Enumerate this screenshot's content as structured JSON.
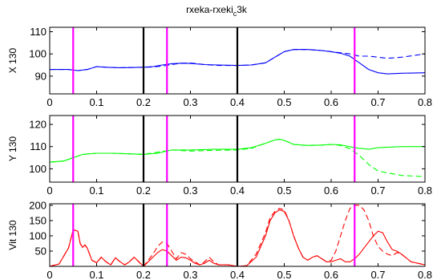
{
  "chart_data": {
    "type": "line",
    "title": "rxeka-rxeki",
    "title_sub": "c",
    "title_suffix": "3k",
    "xlim": [
      0,
      0.8
    ],
    "xticks": [
      "0",
      "0.1",
      "0.2",
      "0.3",
      "0.4",
      "0.5",
      "0.6",
      "0.7",
      "0.8"
    ],
    "xtick_values": [
      0,
      0.1,
      0.2,
      0.3,
      0.4,
      0.5,
      0.6,
      0.7,
      0.8
    ],
    "vlines_black": [
      0.2,
      0.4
    ],
    "vlines_magenta": [
      0.05,
      0.25,
      0.65
    ],
    "colors": {
      "black": "#000000",
      "magenta": "#ff00ff"
    },
    "panels": [
      {
        "ylabel": "X 130",
        "ylim": [
          82,
          112
        ],
        "yticks": [
          "90",
          "100",
          "110"
        ],
        "ytick_values": [
          90,
          100,
          110
        ],
        "color": "#0000ff",
        "series": [
          {
            "style": "solid",
            "x": [
              0,
              0.04,
              0.06,
              0.08,
              0.1,
              0.12,
              0.15,
              0.18,
              0.2,
              0.22,
              0.24,
              0.26,
              0.28,
              0.3,
              0.33,
              0.36,
              0.4,
              0.43,
              0.46,
              0.48,
              0.5,
              0.52,
              0.55,
              0.58,
              0.6,
              0.62,
              0.64,
              0.66,
              0.68,
              0.7,
              0.72,
              0.75,
              0.8
            ],
            "y": [
              93,
              93,
              92.5,
              93,
              94.3,
              94,
              93.8,
              93.9,
              94,
              94.3,
              95,
              95.6,
              95.8,
              95.7,
              95.2,
              95,
              94.8,
              95,
              96,
              98.5,
              101,
              102,
              102,
              101.5,
              101,
              100.3,
              99,
              96,
              93,
              91.5,
              91,
              91.3,
              91.5
            ]
          },
          {
            "style": "dashed",
            "x": [
              0,
              0.04,
              0.06,
              0.08,
              0.1,
              0.12,
              0.15,
              0.18,
              0.2,
              0.22,
              0.24,
              0.26,
              0.28,
              0.3,
              0.33,
              0.36,
              0.4,
              0.43,
              0.46,
              0.48,
              0.5,
              0.52,
              0.55,
              0.58,
              0.6,
              0.62,
              0.64,
              0.66,
              0.68,
              0.7,
              0.72,
              0.75,
              0.8
            ],
            "y": [
              93,
              93,
              92.5,
              93,
              94.3,
              94,
              93.8,
              93.9,
              94,
              94.1,
              94.5,
              95.2,
              95.8,
              95.9,
              95.2,
              94.8,
              94.8,
              95,
              96,
              98.5,
              101,
              102,
              102,
              101.5,
              101,
              100.5,
              100,
              99,
              99,
              98.5,
              98,
              98.5,
              100
            ]
          }
        ]
      },
      {
        "ylabel": "Y 130",
        "ylim": [
          94,
          124
        ],
        "yticks": [
          "100",
          "110",
          "120"
        ],
        "ytick_values": [
          100,
          110,
          120
        ],
        "color": "#00ff00",
        "series": [
          {
            "style": "solid",
            "x": [
              0,
              0.03,
              0.05,
              0.07,
              0.1,
              0.13,
              0.16,
              0.2,
              0.23,
              0.26,
              0.3,
              0.35,
              0.4,
              0.43,
              0.46,
              0.48,
              0.49,
              0.5,
              0.52,
              0.55,
              0.58,
              0.6,
              0.62,
              0.65,
              0.68,
              0.7,
              0.75,
              0.8
            ],
            "y": [
              103,
              103.5,
              105,
              106.5,
              107,
              107,
              106.8,
              106.5,
              107,
              108.5,
              108.5,
              108.8,
              108.8,
              109.5,
              111.5,
              113,
              113.3,
              112.8,
              111,
              110.5,
              110.7,
              111,
              110.8,
              109.5,
              108.8,
              109.5,
              110,
              110
            ]
          },
          {
            "style": "dashed",
            "x": [
              0,
              0.03,
              0.05,
              0.07,
              0.1,
              0.13,
              0.16,
              0.2,
              0.23,
              0.26,
              0.3,
              0.35,
              0.4,
              0.43,
              0.46,
              0.48,
              0.49,
              0.5,
              0.52,
              0.55,
              0.58,
              0.6,
              0.62,
              0.64,
              0.66,
              0.68,
              0.7,
              0.75,
              0.8
            ],
            "y": [
              103,
              103.5,
              105,
              106.5,
              107,
              107,
              106.8,
              106.5,
              107.5,
              108.5,
              108,
              108.3,
              108.5,
              109.2,
              111.5,
              113,
              113.3,
              112.8,
              111,
              110.5,
              110.7,
              111,
              110.5,
              109,
              106,
              102,
              99,
              97,
              96.5
            ]
          }
        ]
      },
      {
        "ylabel": "Vit 130",
        "ylim": [
          0,
          205
        ],
        "yticks": [
          "50",
          "100",
          "150",
          "200"
        ],
        "ytick_values": [
          50,
          100,
          150,
          200
        ],
        "color": "#ff0000",
        "series": [
          {
            "style": "solid",
            "x": [
              0,
              0.02,
              0.04,
              0.05,
              0.06,
              0.065,
              0.07,
              0.075,
              0.08,
              0.085,
              0.09,
              0.1,
              0.11,
              0.12,
              0.13,
              0.14,
              0.15,
              0.16,
              0.17,
              0.18,
              0.19,
              0.2,
              0.21,
              0.22,
              0.23,
              0.24,
              0.25,
              0.26,
              0.27,
              0.28,
              0.29,
              0.3,
              0.31,
              0.32,
              0.33,
              0.34,
              0.35,
              0.36,
              0.38,
              0.4,
              0.42,
              0.44,
              0.46,
              0.47,
              0.48,
              0.49,
              0.5,
              0.51,
              0.52,
              0.53,
              0.54,
              0.55,
              0.56,
              0.57,
              0.58,
              0.59,
              0.6,
              0.61,
              0.62,
              0.63,
              0.64,
              0.65,
              0.66,
              0.67,
              0.68,
              0.69,
              0.7,
              0.71,
              0.72,
              0.73,
              0.74,
              0.75,
              0.77,
              0.8
            ],
            "y": [
              0,
              8,
              60,
              120,
              115,
              75,
              62,
              70,
              60,
              40,
              20,
              12,
              30,
              15,
              5,
              28,
              15,
              5,
              15,
              30,
              15,
              0,
              15,
              30,
              45,
              55,
              50,
              35,
              20,
              30,
              28,
              20,
              10,
              5,
              10,
              20,
              10,
              5,
              5,
              0,
              2,
              30,
              100,
              150,
              175,
              185,
              180,
              150,
              100,
              60,
              30,
              20,
              30,
              35,
              25,
              15,
              15,
              20,
              25,
              15,
              15,
              25,
              40,
              60,
              80,
              100,
              115,
              110,
              80,
              55,
              50,
              40,
              15,
              5
            ]
          },
          {
            "style": "dashed",
            "x": [
              0,
              0.02,
              0.04,
              0.05,
              0.06,
              0.065,
              0.07,
              0.075,
              0.08,
              0.085,
              0.09,
              0.1,
              0.11,
              0.12,
              0.13,
              0.14,
              0.15,
              0.16,
              0.17,
              0.18,
              0.19,
              0.2,
              0.21,
              0.22,
              0.23,
              0.24,
              0.25,
              0.26,
              0.27,
              0.28,
              0.29,
              0.3,
              0.31,
              0.32,
              0.33,
              0.34,
              0.35,
              0.36,
              0.38,
              0.4,
              0.42,
              0.44,
              0.46,
              0.47,
              0.48,
              0.49,
              0.5,
              0.51,
              0.52,
              0.53,
              0.54,
              0.55,
              0.56,
              0.57,
              0.58,
              0.59,
              0.6,
              0.61,
              0.62,
              0.63,
              0.64,
              0.65,
              0.66,
              0.67,
              0.68,
              0.69,
              0.7,
              0.71,
              0.72,
              0.73,
              0.74,
              0.75,
              0.77,
              0.8
            ],
            "y": [
              0,
              8,
              60,
              120,
              115,
              75,
              62,
              70,
              60,
              40,
              20,
              12,
              30,
              15,
              5,
              28,
              15,
              5,
              15,
              30,
              15,
              0,
              20,
              40,
              65,
              80,
              75,
              50,
              25,
              45,
              40,
              25,
              15,
              5,
              15,
              30,
              15,
              5,
              5,
              0,
              2,
              40,
              110,
              160,
              180,
              190,
              185,
              150,
              100,
              60,
              30,
              20,
              30,
              35,
              25,
              15,
              20,
              50,
              100,
              150,
              190,
              200,
              200,
              185,
              150,
              100,
              65,
              50,
              40,
              35,
              45,
              40,
              15,
              5
            ]
          }
        ]
      }
    ]
  }
}
